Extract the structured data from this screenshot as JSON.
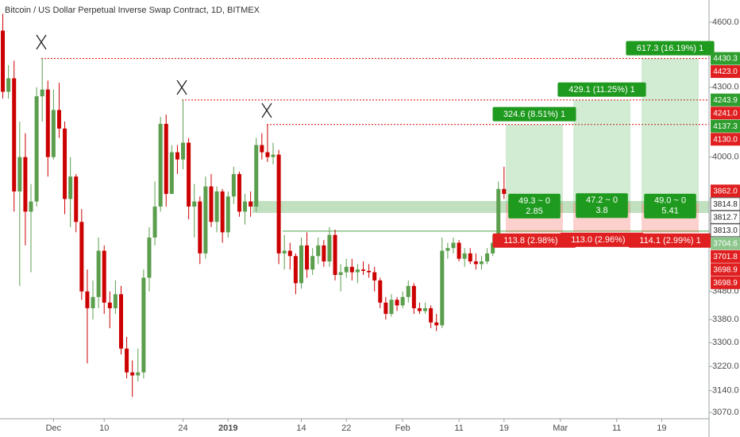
{
  "chart_data": {
    "type": "candlestick",
    "title": "Bitcoin / US Dollar Perpetual Inverse Swap Contract, 1D, BITMEX",
    "log_scale": true,
    "grid": false,
    "up_color": "#5b9e4d",
    "down_color": "#cc0000",
    "ylim": [
      3050,
      4707
    ],
    "yticks": [
      {
        "value": 4600,
        "label": "4600.0"
      },
      {
        "value": 4300,
        "label": "4300.0"
      },
      {
        "value": 4000,
        "label": "4000.0"
      },
      {
        "value": 3480,
        "label": "3480.0"
      },
      {
        "value": 3380,
        "label": "3380.0"
      },
      {
        "value": 3300,
        "label": "3300.0"
      },
      {
        "value": 3220,
        "label": "3220.0"
      },
      {
        "value": 3140,
        "label": "3140.0"
      },
      {
        "value": 3070,
        "label": "3070.0"
      }
    ],
    "xlim": [
      -0.5,
      125.4
    ],
    "xticks": [
      {
        "value": 9,
        "label": "Dec"
      },
      {
        "value": 18,
        "label": "10"
      },
      {
        "value": 32,
        "label": "24"
      },
      {
        "value": 40,
        "label": "2019"
      },
      {
        "value": 53,
        "label": "14"
      },
      {
        "value": 61,
        "label": "22"
      },
      {
        "value": 71,
        "label": "Feb"
      },
      {
        "value": 81,
        "label": "11"
      },
      {
        "value": 89,
        "label": "19"
      },
      {
        "value": 99,
        "label": "Mar"
      },
      {
        "value": 109,
        "label": "11"
      },
      {
        "value": 117,
        "label": "19"
      }
    ],
    "open": [
      4560,
      4280,
      4340,
      3860,
      4000,
      3780,
      3820,
      4260,
      4290,
      4000,
      4200,
      4120,
      3830,
      3920,
      3740,
      3480,
      3420,
      3460,
      3630,
      3440,
      3420,
      3470,
      3280,
      3200,
      3190,
      3200,
      3530,
      3680,
      3800,
      4140,
      3850,
      4020,
      3990,
      4060,
      3800,
      3820,
      3620,
      3880,
      3740,
      3860,
      3700,
      3840,
      3930,
      3780,
      3820,
      3800,
      4050,
      4020,
      4000,
      4010,
      3620,
      3630,
      3610,
      3510,
      3650,
      3560,
      3610,
      3650,
      3590,
      3690,
      3540,
      3550,
      3570,
      3550,
      3560,
      3555,
      3550,
      3520,
      3440,
      3400,
      3450,
      3430,
      3460,
      3500,
      3420,
      3410,
      3420,
      3370,
      3360,
      3630,
      3640,
      3660,
      3600,
      3620,
      3590,
      3580,
      3590,
      3620,
      3660,
      3870
    ],
    "high": [
      4640,
      4400,
      4420,
      4150,
      4100,
      3890,
      4300,
      4430,
      4330,
      4290,
      4320,
      4150,
      4000,
      3930,
      3790,
      3560,
      3520,
      3680,
      3650,
      3480,
      3520,
      3500,
      3320,
      3240,
      3280,
      3560,
      3720,
      3900,
      4170,
      4180,
      4050,
      4050,
      4244,
      4080,
      3890,
      3840,
      3920,
      3930,
      3880,
      3870,
      3860,
      3960,
      3940,
      3850,
      3860,
      4080,
      4100,
      4137,
      4060,
      4030,
      3690,
      3660,
      3620,
      3680,
      3700,
      3640,
      3680,
      3670,
      3720,
      3710,
      3580,
      3600,
      3600,
      3580,
      3590,
      3580,
      3570,
      3530,
      3460,
      3470,
      3460,
      3480,
      3520,
      3510,
      3440,
      3440,
      3430,
      3400,
      3680,
      3660,
      3680,
      3670,
      3640,
      3640,
      3620,
      3610,
      3640,
      3690,
      3900,
      3960
    ],
    "low": [
      4250,
      4250,
      3780,
      3500,
      3650,
      3550,
      3800,
      4150,
      3920,
      3990,
      4080,
      3770,
      3720,
      3700,
      3450,
      3230,
      3380,
      3420,
      3400,
      3350,
      3400,
      3260,
      3180,
      3120,
      3170,
      3180,
      3480,
      3650,
      3780,
      3800,
      3850,
      3930,
      3950,
      3750,
      3680,
      3580,
      3600,
      3720,
      3700,
      3660,
      3680,
      3810,
      3760,
      3730,
      3760,
      3780,
      3990,
      3980,
      3970,
      3580,
      3560,
      3560,
      3470,
      3490,
      3530,
      3540,
      3580,
      3570,
      3570,
      3520,
      3480,
      3530,
      3520,
      3510,
      3540,
      3530,
      3480,
      3420,
      3380,
      3390,
      3410,
      3420,
      3440,
      3400,
      3400,
      3400,
      3350,
      3340,
      3350,
      3600,
      3620,
      3590,
      3570,
      3580,
      3560,
      3560,
      3580,
      3610,
      3650,
      3830
    ],
    "close": [
      4280,
      4340,
      3860,
      4000,
      3780,
      3820,
      4260,
      4290,
      4000,
      4200,
      4120,
      3830,
      3920,
      3740,
      3480,
      3420,
      3460,
      3630,
      3440,
      3420,
      3470,
      3280,
      3200,
      3190,
      3200,
      3530,
      3680,
      3800,
      4140,
      3850,
      4020,
      3990,
      4060,
      3800,
      3820,
      3620,
      3880,
      3740,
      3860,
      3700,
      3840,
      3930,
      3780,
      3820,
      3800,
      4050,
      4020,
      4000,
      4010,
      3620,
      3630,
      3610,
      3510,
      3650,
      3560,
      3610,
      3650,
      3590,
      3690,
      3540,
      3550,
      3570,
      3550,
      3560,
      3555,
      3550,
      3520,
      3440,
      3400,
      3450,
      3430,
      3460,
      3500,
      3420,
      3410,
      3420,
      3370,
      3360,
      3630,
      3640,
      3660,
      3600,
      3620,
      3590,
      3580,
      3590,
      3620,
      3660,
      3870,
      3850
    ],
    "price_lines": [
      4430.3,
      4243.9,
      4137.3
    ],
    "price_line_color": "#e02020",
    "zone": [
      3775,
      3822
    ],
    "zone_color": "#8cc68c",
    "support": 3704.6,
    "support_color": "#6cb86c",
    "positions": [
      {
        "entry": 3812.7,
        "target": 4137.3,
        "stop": 3698.9,
        "target_text": "324.6 (8.51%) 1",
        "mid_text": "49.3 ~ 0",
        "rr_text": "2.85",
        "stop_text": "113.8 (2.98%) 1"
      },
      {
        "entry": 3814.8,
        "target": 4243.9,
        "stop": 3701.8,
        "target_text": "429.1 (11.25%) 1",
        "mid_text": "47.2 ~ 0",
        "rr_text": "3.8",
        "stop_text": "113.0 (2.96%) 1"
      },
      {
        "entry": 3813.0,
        "target": 4430.3,
        "stop": 3698.9,
        "target_text": "617.3 (16.19%) 1",
        "mid_text": "49.0 ~ 0",
        "rr_text": "5.41",
        "stop_text": "114.1 (2.99%) 1"
      }
    ],
    "price_tags": [
      {
        "value": 4430.3,
        "label": "4430.3",
        "color": "#2e9e2e"
      },
      {
        "value": 4423.0,
        "label": "4423.0",
        "color": "#e02020"
      },
      {
        "value": 4243.9,
        "label": "4243.9",
        "color": "#2e9e2e"
      },
      {
        "value": 4241.0,
        "label": "4241.0",
        "color": "#e02020"
      },
      {
        "value": 4137.3,
        "label": "4137.3",
        "color": "#2e9e2e"
      },
      {
        "value": 4130.0,
        "label": "4130.0",
        "color": "#e02020"
      },
      {
        "value": 3862.0,
        "label": "3862.0",
        "color": "#e02020"
      },
      {
        "value": 3814.8,
        "label": "3814.8",
        "color": "#ffffff"
      },
      {
        "value": 3812.7,
        "label": "3812.7",
        "color": "#ffffff"
      },
      {
        "value": 3813.0,
        "label": "3813.0",
        "color": "#ffffff"
      },
      {
        "value": 3704.6,
        "label": "3704.6",
        "color": "#8cc68c"
      },
      {
        "value": 3701.8,
        "label": "3701.8",
        "color": "#e02020"
      },
      {
        "value": 3698.9,
        "label": "3698.9",
        "color": "#e02020"
      },
      {
        "value": 3698.9,
        "label": "3698.9",
        "color": "#e02020"
      }
    ]
  }
}
